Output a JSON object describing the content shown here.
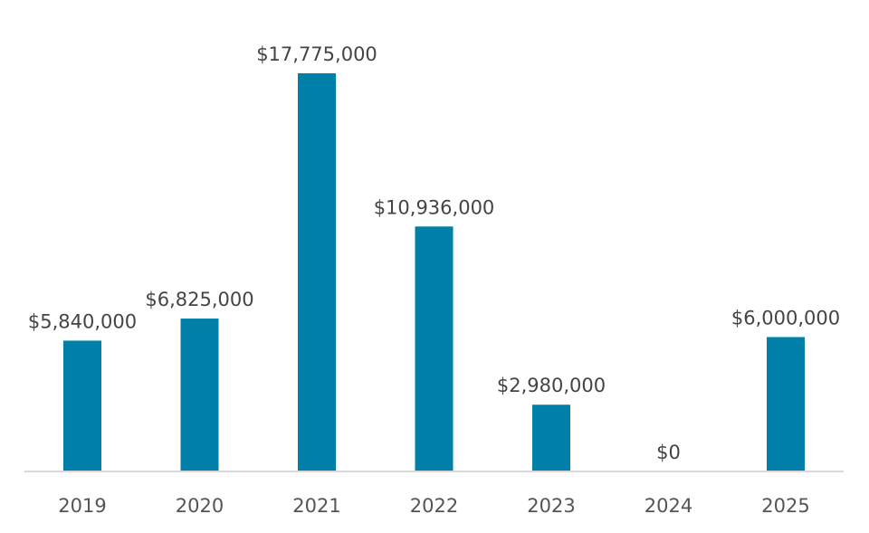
{
  "chart_data": {
    "type": "bar",
    "categories": [
      "2019",
      "2020",
      "2021",
      "2022",
      "2023",
      "2024",
      "2025"
    ],
    "values": [
      5840000,
      6825000,
      17775000,
      10936000,
      2980000,
      0,
      6000000
    ],
    "data_labels": [
      "$5,840,000",
      "$6,825,000",
      "$17,775,000",
      "$10,936,000",
      "$2,980,000",
      "$0",
      "$6,000,000"
    ],
    "title": "",
    "xlabel": "",
    "ylabel": "",
    "ylim": [
      0,
      17775000
    ],
    "grid": false,
    "legend": "none",
    "colors": {
      "bar": "#0080A8",
      "axis": "#D9D9D9"
    }
  }
}
